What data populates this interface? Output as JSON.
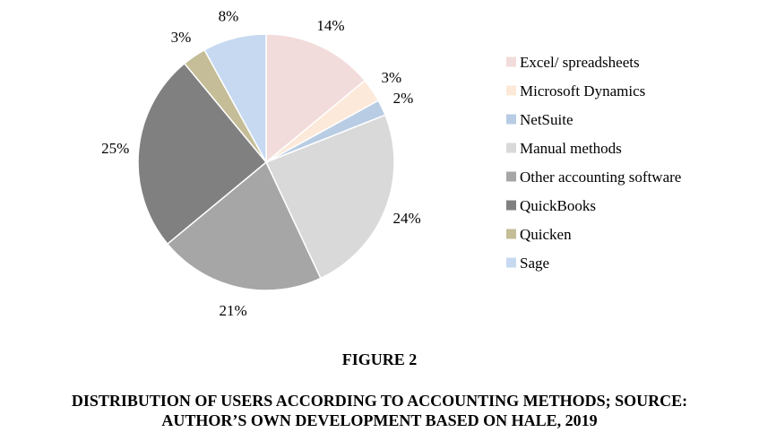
{
  "figure": {
    "number": "FIGURE 2",
    "caption_line1": "DISTRIBUTION OF USERS ACCORDING TO ACCOUNTING METHODS; SOURCE:",
    "caption_line2": "AUTHOR’S OWN DEVELOPMENT BASED ON HALE, 2019"
  },
  "chart_data": {
    "type": "pie",
    "title": "",
    "start_angle_deg": 0,
    "direction": "clockwise",
    "legend_position": "right",
    "slices": [
      {
        "label": "Excel/ spreadsheets",
        "value": 14,
        "display": "14%",
        "color": "#f2dcdb"
      },
      {
        "label": "Microsoft Dynamics",
        "value": 3,
        "display": "3%",
        "color": "#fde9d9"
      },
      {
        "label": "NetSuite",
        "value": 2,
        "display": "2%",
        "color": "#b8cce4"
      },
      {
        "label": "Manual methods",
        "value": 24,
        "display": "24%",
        "color": "#d9d9d9"
      },
      {
        "label": "Other accounting software",
        "value": 21,
        "display": "21%",
        "color": "#a6a6a6"
      },
      {
        "label": "QuickBooks",
        "value": 25,
        "display": "25%",
        "color": "#808080"
      },
      {
        "label": "Quicken",
        "value": 3,
        "display": "3%",
        "color": "#c4bd97"
      },
      {
        "label": "Sage",
        "value": 8,
        "display": "8%",
        "color": "#c6d9f1"
      }
    ]
  }
}
